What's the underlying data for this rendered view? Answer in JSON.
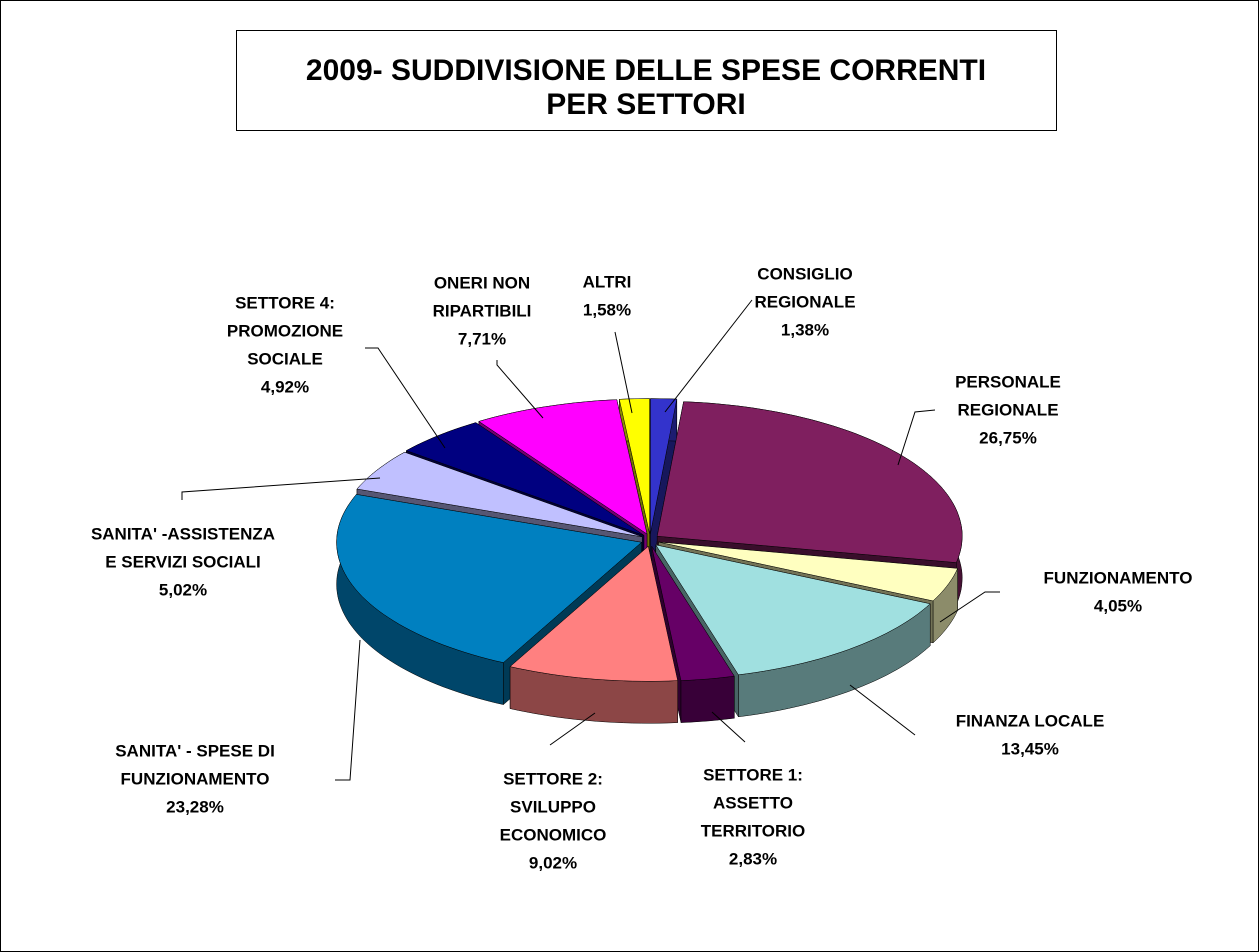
{
  "chart_data": {
    "type": "pie3d",
    "title": [
      "2009- SUDDIVISIONE DELLE SPESE CORRENTI",
      "PER SETTORI"
    ],
    "categories": [
      [
        "CONSIGLIO",
        "REGIONALE"
      ],
      [
        "PERSONALE",
        "REGIONALE"
      ],
      [
        "FUNZIONAMENTO"
      ],
      [
        "FINANZA LOCALE"
      ],
      [
        "SETTORE 1:",
        "ASSETTO",
        "TERRITORIO"
      ],
      [
        "SETTORE 2:",
        "SVILUPPO",
        "ECONOMICO"
      ],
      [
        "SANITA' - SPESE DI",
        "FUNZIONAMENTO"
      ],
      [
        "SANITA' -ASSISTENZA",
        "E SERVIZI SOCIALI"
      ],
      [
        "SETTORE 4:",
        "PROMOZIONE",
        "SOCIALE"
      ],
      [
        "ONERI NON",
        "RIPARTIBILI"
      ],
      [
        "ALTRI"
      ]
    ],
    "values": [
      1.38,
      26.75,
      4.05,
      13.45,
      2.83,
      9.02,
      23.28,
      5.02,
      4.92,
      7.71,
      1.58
    ],
    "value_labels": [
      "1,38%",
      "26,75%",
      "4,05%",
      "13,45%",
      "2,83%",
      "9,02%",
      "23,28%",
      "5,02%",
      "4,92%",
      "7,71%",
      "1,58%"
    ],
    "colors": [
      "#3333cc",
      "#7f1f5f",
      "#ffffc0",
      "#a0e0e0",
      "#660066",
      "#ff8080",
      "#0080c0",
      "#c0c0ff",
      "#000080",
      "#ff00ff",
      "#ffff00"
    ]
  }
}
